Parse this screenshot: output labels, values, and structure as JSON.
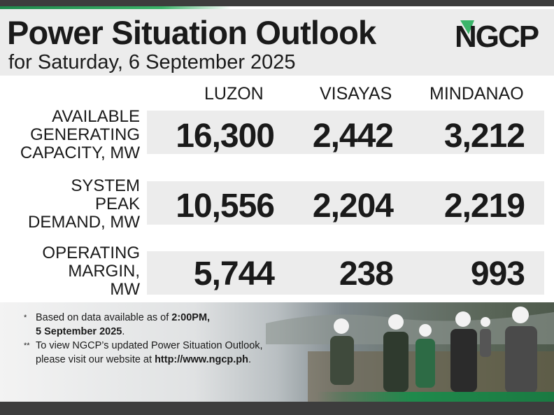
{
  "header": {
    "title": "Power Situation Outlook",
    "subtitle": "for Saturday, 6 September 2025",
    "logo_text": "NGCP",
    "logo_color": "#1f8a4c"
  },
  "columns": [
    "LUZON",
    "VISAYAS",
    "MINDANAO"
  ],
  "rows": [
    {
      "label": "AVAILABLE\nGENERATING\nCAPACITY, MW",
      "values": [
        "16,300",
        "2,442",
        "3,212"
      ]
    },
    {
      "label": "SYSTEM\nPEAK\nDEMAND, MW",
      "values": [
        "10,556",
        "2,204",
        "2,219"
      ]
    },
    {
      "label": "OPERATING\nMARGIN,\nMW",
      "values": [
        "5,744",
        "238",
        "993"
      ]
    }
  ],
  "notes": [
    {
      "mark": "*",
      "text_before": "Based on data available as of ",
      "bold": "2:00PM,",
      "line2_bold": "5 September 2025",
      "line2_after": "."
    },
    {
      "mark": "**",
      "text_before": "To view NGCP’s updated Power Situation Outlook,",
      "line2_before": "please visit our website at ",
      "line2_bold": "http://www.ngcp.ph",
      "line2_after": "."
    }
  ]
}
